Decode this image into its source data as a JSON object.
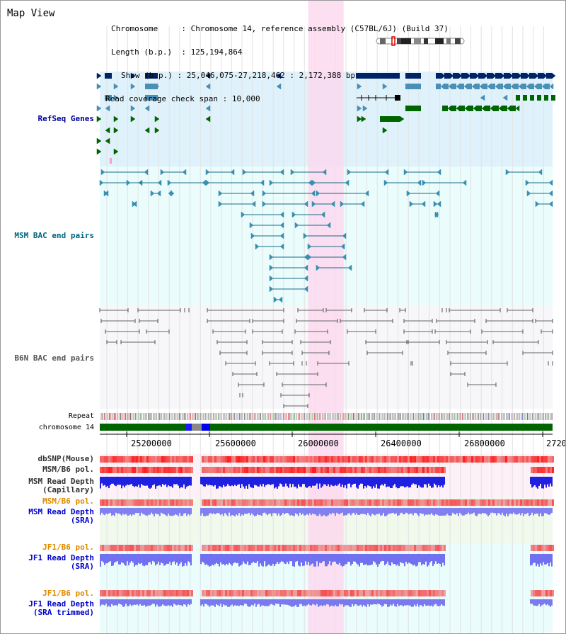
{
  "app": {
    "title": "Map View"
  },
  "info": {
    "chromosome_key": "Chromosome",
    "chromosome_val": "Chromosome 14, reference assembly (C57BL/6J) (Build 37)",
    "length_key": "Length (b.p.)",
    "length_val": "125,194,864",
    "show_key": "Show (b.p.)",
    "show_val": "25,046,075-27,218,462 : 2,172,388 bp",
    "span_key": "Read coverage check span",
    "span_val": "10,000"
  },
  "view": {
    "start": 25046075,
    "end": 27218462,
    "highlight": [
      26046000,
      26216000
    ]
  },
  "tracks": {
    "refseq": {
      "label": "RefSeq Genes",
      "color": "#000099"
    },
    "msm_bac": {
      "label": "MSM BAC end pairs",
      "color": "#006680"
    },
    "b6n_bac": {
      "label": "B6N BAC end pairs",
      "color": "#555555"
    },
    "repeat": {
      "label": "Repeat"
    },
    "chrom": {
      "label": "chromosome 14"
    },
    "dbsnp": {
      "label": "dbSNP(Mouse)",
      "color": "#333333"
    },
    "msm_b6_pol_1": {
      "label": "MSM/B6 pol.",
      "color": "#333333"
    },
    "msm_depth_cap": {
      "label": "MSM Read Depth\n(Capillary)",
      "color": "#333333"
    },
    "msm_b6_pol_2": {
      "label": "MSM/B6 pol.",
      "color": "#e08a00"
    },
    "msm_depth_sra": {
      "label": "MSM Read Depth\n(SRA)",
      "color": "#0000cc"
    },
    "jf1_b6_pol_1": {
      "label": "JF1/B6 pol.",
      "color": "#e08a00"
    },
    "jf1_depth_sra": {
      "label": "JF1 Read Depth\n(SRA)",
      "color": "#0000cc"
    },
    "jf1_b6_pol_2": {
      "label": "JF1/B6 pol.",
      "color": "#e08a00"
    },
    "jf1_depth_trim": {
      "label": "JF1 Read Depth\n(SRA trimmed)",
      "color": "#0000cc"
    }
  },
  "axis": {
    "ticks": [
      "25200000",
      "25600000",
      "26000000",
      "26400000",
      "26800000",
      "2720"
    ]
  },
  "colors": {
    "refseq_bg": "#dff2fb",
    "bac_bg": "#eafcfc",
    "highlight": "#fbd9ef",
    "gene_dark": "#002266",
    "gene_mid": "#4a8fb5",
    "gene_green": "#006400",
    "chrom_bar": "#006400"
  }
}
